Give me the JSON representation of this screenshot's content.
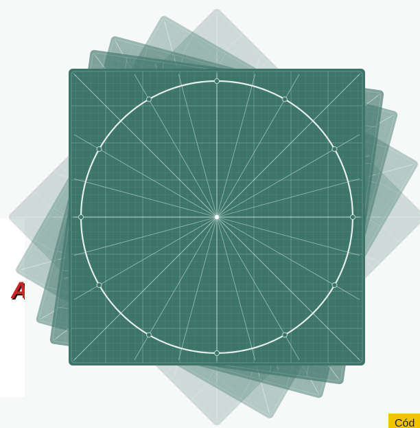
{
  "product": {
    "name": "cutting-mat",
    "mat_color": "#3e7569",
    "line_color": "#d8ece6",
    "rotations_deg": [
      45,
      30,
      15,
      8,
      0
    ],
    "layer_opacity": [
      0.22,
      0.35,
      0.5,
      0.65,
      1.0
    ],
    "radial_spokes": 24,
    "circle_markers": 12
  },
  "side_label": {
    "text": "A",
    "color": "#c62828"
  },
  "code_badge": {
    "text": "Cód",
    "color": "#f2c400"
  }
}
